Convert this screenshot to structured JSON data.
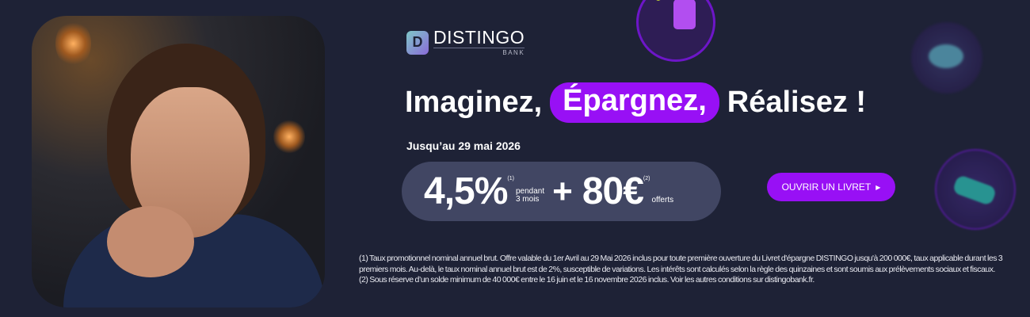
{
  "brand": {
    "logo_letter": "D",
    "name": "DISTINGO",
    "sub": "BANK"
  },
  "headline": {
    "part1": "Imaginez,",
    "highlight": "Épargnez,",
    "part3": "Réalisez !"
  },
  "until": "Jusqu’au 29 mai 2026",
  "offer": {
    "rate": "4,5%",
    "rate_note": "(1)",
    "rate_line1": "pendant",
    "rate_line2": "3 mois",
    "plus": "+",
    "bonus": "80€",
    "bonus_note": "(2)",
    "bonus_label": "offerts"
  },
  "cta": {
    "label": "OUVRIR UN LIVRET",
    "icon": "triangle-right"
  },
  "footnotes": [
    "(1) Taux promotionnel nominal annuel brut. Offre valable du 1er Avril au 29 Mai 2026 inclus pour toute première ouverture du Livret d'épargne DISTINGO jusqu'à 200 000€, taux applicable durant les 3 premiers mois. Au-delà, le taux nominal annuel brut est de 2%, susceptible de variations. Les intérêts sont calculés selon la règle des quinzaines et sont soumis aux prélèvements sociaux et fiscaux.",
    "(2) Sous réserve d’un solde minimum de 40 000€ entre le 16 juin et le 16 novembre 2026 inclus. Voir les autres conditions sur distingobank.fr."
  ],
  "colors": {
    "background": "#1e2236",
    "accent": "#9810f5",
    "offer_bg": "#414663"
  }
}
